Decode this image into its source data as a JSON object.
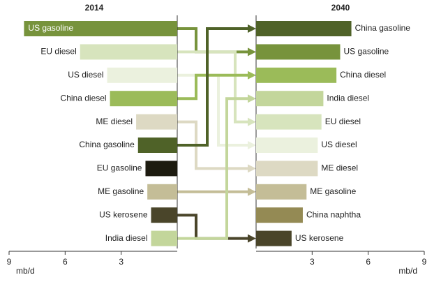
{
  "chart_data": [
    {
      "type": "bar",
      "title": "2014",
      "x_reversed": true,
      "categories": [
        "US gasoline",
        "EU diesel",
        "US diesel",
        "China diesel",
        "ME diesel",
        "China gasoline",
        "EU gasoline",
        "ME gasoline",
        "US kerosene",
        "India diesel"
      ],
      "values": [
        8.2,
        5.2,
        3.75,
        3.6,
        2.2,
        2.1,
        1.7,
        1.6,
        1.4,
        1.4
      ],
      "colors": [
        "#77933c",
        "#d7e4bd",
        "#ebf1de",
        "#9bbb59",
        "#ddd9c3",
        "#4f6228",
        "#1d1b10",
        "#c4bd97",
        "#4a452a",
        "#c3d69b"
      ],
      "xlim": [
        0,
        9
      ],
      "xticks": [
        3,
        6,
        9
      ],
      "xlabel": "mb/d"
    },
    {
      "type": "bar",
      "title": "2040",
      "x_reversed": false,
      "categories": [
        "China gasoline",
        "US gasoline",
        "China diesel",
        "India diesel",
        "EU diesel",
        "US diesel",
        "ME diesel",
        "ME gasoline",
        "China naphtha",
        "US kerosene"
      ],
      "values": [
        5.1,
        4.5,
        4.3,
        3.6,
        3.5,
        3.3,
        3.3,
        2.7,
        2.5,
        1.9
      ],
      "colors": [
        "#4f6228",
        "#77933c",
        "#9bbb59",
        "#c3d69b",
        "#d7e4bd",
        "#ebf1de",
        "#ddd9c3",
        "#c4bd97",
        "#948a54",
        "#4a452a"
      ],
      "xlim": [
        0,
        9
      ],
      "xticks": [
        3,
        6,
        9
      ],
      "xlabel": "mb/d"
    }
  ]
}
